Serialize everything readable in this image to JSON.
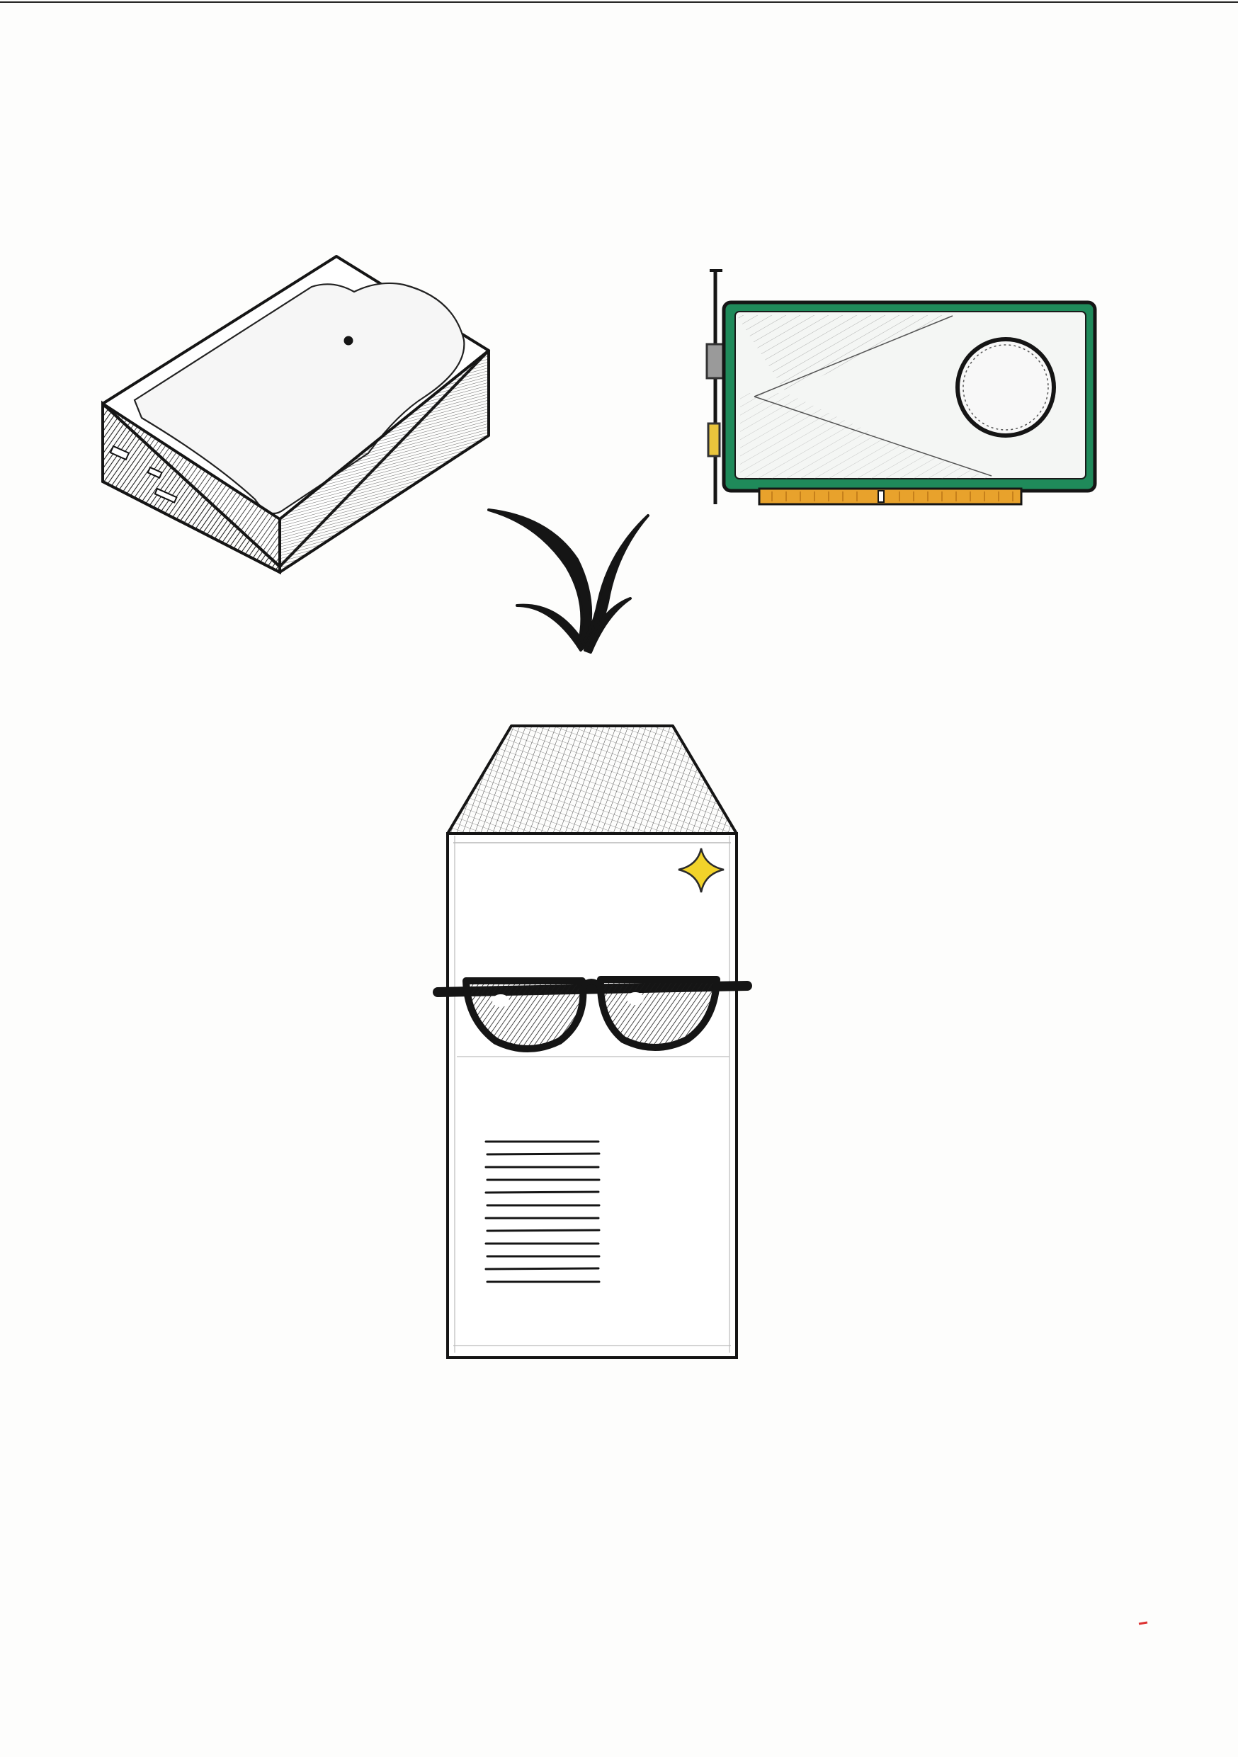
{
  "illustration": {
    "objects": [
      {
        "name": "hard-drive",
        "position": "top-left"
      },
      {
        "name": "graphics-card",
        "position": "top-right"
      },
      {
        "name": "merge-arrow",
        "position": "center"
      },
      {
        "name": "pc-tower-with-sunglasses",
        "position": "bottom-center"
      }
    ],
    "style": "hand-drawn ink sketch on white paper with colored pencil accents"
  },
  "colors": {
    "paper": "#fdfdfc",
    "ink": "#151515",
    "pcb_green": "#1f8a5a",
    "gold_connector": "#e8a22c",
    "sparkle_yellow": "#f2d32a",
    "card_shroud": "#f4f6f4"
  }
}
